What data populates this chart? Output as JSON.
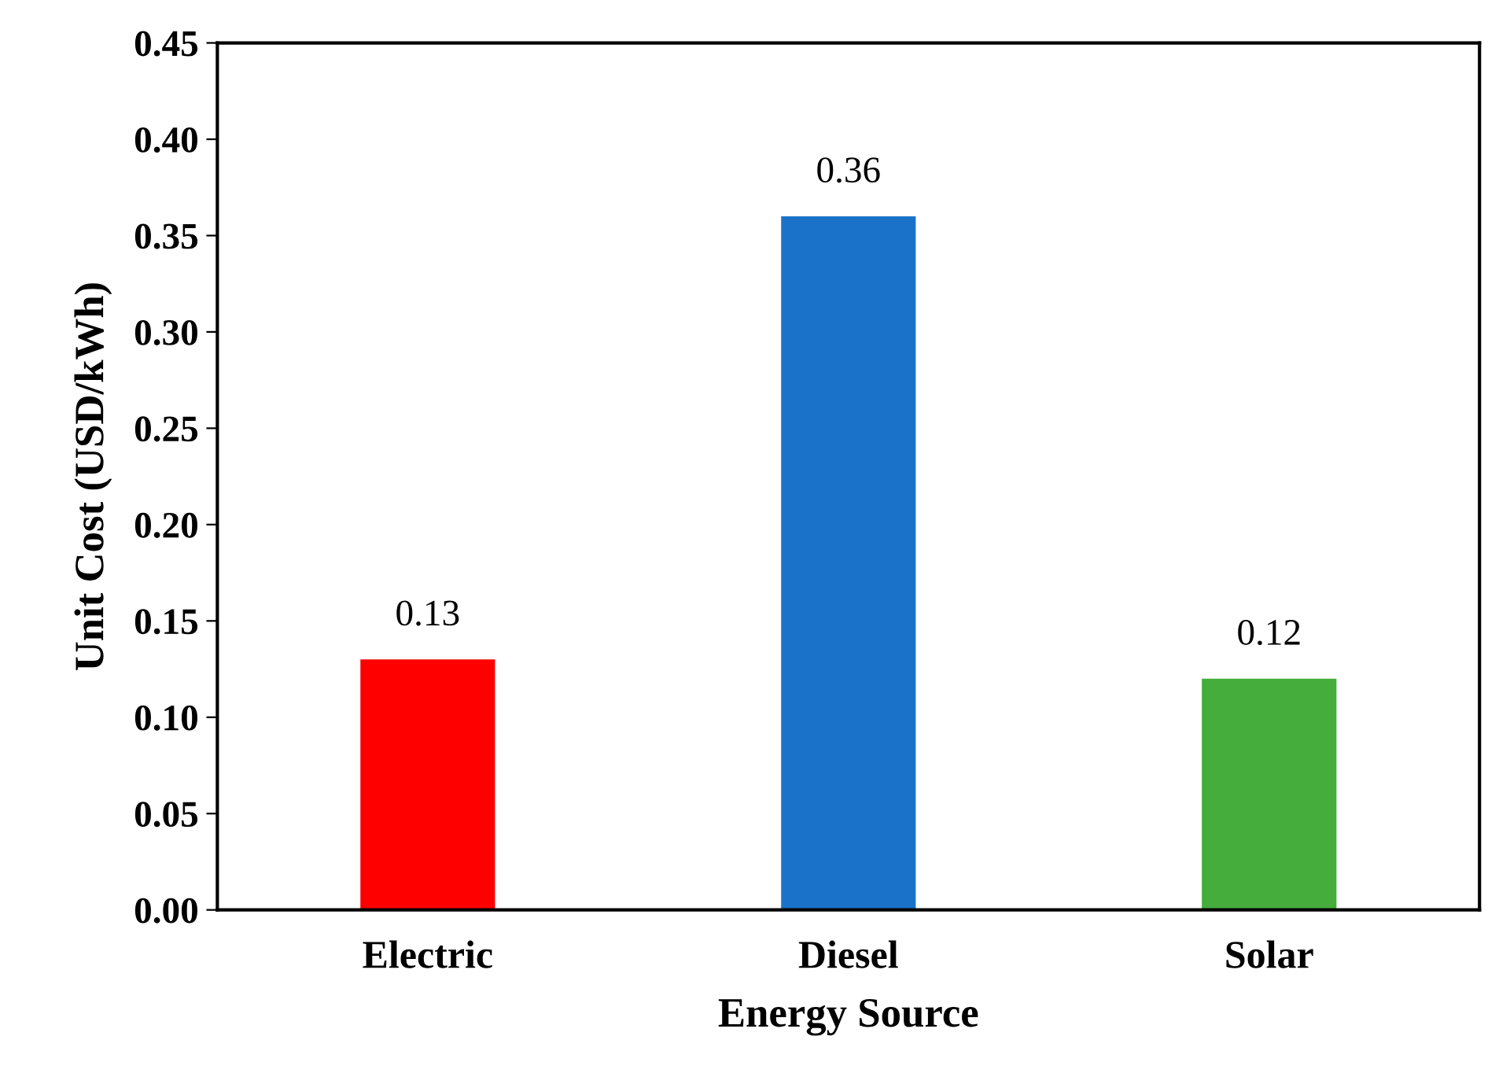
{
  "chart_data": {
    "type": "bar",
    "xlabel": "Energy Source",
    "ylabel": "Unit Cost (USD/kWh)",
    "categories": [
      "Electric",
      "Diesel",
      "Solar"
    ],
    "values": [
      0.13,
      0.36,
      0.12
    ],
    "colors": [
      "#ff0000",
      "#1a73c8",
      "#44ad3b"
    ],
    "ylim": [
      0,
      0.45
    ],
    "yticks": [
      {
        "value": 0,
        "label": "0.00"
      },
      {
        "value": 0.05,
        "label": "0.05"
      },
      {
        "value": 0.1,
        "label": "0.10"
      },
      {
        "value": 0.15,
        "label": "0.15"
      },
      {
        "value": 0.2,
        "label": "0.20"
      },
      {
        "value": 0.25,
        "label": "0.25"
      },
      {
        "value": 0.3,
        "label": "0.30"
      },
      {
        "value": 0.35,
        "label": "0.35"
      },
      {
        "value": 0.4,
        "label": "0.40"
      },
      {
        "value": 0.45,
        "label": "0.45"
      }
    ],
    "data_labels": true,
    "grid": false,
    "legend": false
  }
}
